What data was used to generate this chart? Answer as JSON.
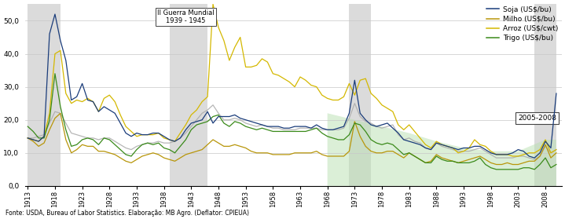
{
  "footnote": "Fonte: USDA, Bureau of Labor Statistics. Elaboração: MB Agro. (Deflator: CPIEUA)",
  "annotation1": "II Guerra Mundial\n1939 - 1945",
  "annotation2": "2005-2008",
  "legend_entries": [
    "Soja (US$/bu)",
    "Milho (US$/bu)",
    "Arroz (US$/cwt)",
    "Trigo (US$/bu)"
  ],
  "line_colors": {
    "soja": "#1a3c7a",
    "milho": "#b8960a",
    "arroz": "#d4b800",
    "trigo": "#3a8a1a",
    "gray": "#aaaaaa"
  },
  "shaded_regions": [
    {
      "xmin": 1913,
      "xmax": 1919,
      "color": "#b0b0b0",
      "alpha": 0.45
    },
    {
      "xmin": 1939,
      "xmax": 1946,
      "color": "#b0b0b0",
      "alpha": 0.45
    },
    {
      "xmin": 1972,
      "xmax": 1976,
      "color": "#b0b0b0",
      "alpha": 0.45
    },
    {
      "xmin": 2006,
      "xmax": 2010,
      "color": "#b0b0b0",
      "alpha": 0.45
    }
  ],
  "green_shaded_x": [
    1970,
    1975,
    1980,
    1985,
    1990,
    1995,
    2000,
    2005,
    2010
  ],
  "green_shaded_y_top": [
    22,
    20,
    18,
    14,
    12,
    10,
    9,
    9,
    14
  ],
  "green_shaded_color": "#b8e0b0",
  "green_shaded_alpha": 0.5,
  "ylim": [
    0,
    55
  ],
  "yticks": [
    0,
    10,
    20,
    30,
    40,
    50
  ],
  "ytick_labels": [
    "0,0",
    "10,0",
    "20,0",
    "30,0",
    "40,0",
    "50,0"
  ],
  "xtick_years": [
    1913,
    1918,
    1923,
    1928,
    1933,
    1938,
    1943,
    1948,
    1953,
    1958,
    1963,
    1968,
    1973,
    1978,
    1983,
    1988,
    1993,
    1998,
    2003,
    2008
  ],
  "background_color": "#ffffff",
  "grid_color": "#c8c8c8",
  "soja": [
    [
      1913,
      14.5
    ],
    [
      1914,
      14.0
    ],
    [
      1915,
      13.5
    ],
    [
      1916,
      15.0
    ],
    [
      1917,
      46.0
    ],
    [
      1918,
      52.0
    ],
    [
      1919,
      44.0
    ],
    [
      1920,
      38.0
    ],
    [
      1921,
      26.0
    ],
    [
      1922,
      27.0
    ],
    [
      1923,
      31.0
    ],
    [
      1924,
      26.0
    ],
    [
      1925,
      25.5
    ],
    [
      1926,
      22.5
    ],
    [
      1927,
      24.0
    ],
    [
      1928,
      23.0
    ],
    [
      1929,
      22.0
    ],
    [
      1930,
      19.0
    ],
    [
      1931,
      16.0
    ],
    [
      1932,
      15.0
    ],
    [
      1933,
      16.0
    ],
    [
      1934,
      15.5
    ],
    [
      1935,
      15.5
    ],
    [
      1936,
      16.0
    ],
    [
      1937,
      16.0
    ],
    [
      1938,
      15.0
    ],
    [
      1939,
      14.0
    ],
    [
      1940,
      13.5
    ],
    [
      1941,
      14.5
    ],
    [
      1942,
      17.0
    ],
    [
      1943,
      19.0
    ],
    [
      1944,
      19.5
    ],
    [
      1945,
      20.0
    ],
    [
      1946,
      22.5
    ],
    [
      1947,
      19.0
    ],
    [
      1948,
      21.0
    ],
    [
      1949,
      21.0
    ],
    [
      1950,
      21.0
    ],
    [
      1951,
      21.5
    ],
    [
      1952,
      20.5
    ],
    [
      1953,
      20.0
    ],
    [
      1954,
      19.5
    ],
    [
      1955,
      19.0
    ],
    [
      1956,
      18.5
    ],
    [
      1957,
      18.0
    ],
    [
      1958,
      18.0
    ],
    [
      1959,
      18.0
    ],
    [
      1960,
      17.5
    ],
    [
      1961,
      17.5
    ],
    [
      1962,
      18.0
    ],
    [
      1963,
      18.0
    ],
    [
      1964,
      18.0
    ],
    [
      1965,
      17.5
    ],
    [
      1966,
      18.5
    ],
    [
      1967,
      17.5
    ],
    [
      1968,
      17.0
    ],
    [
      1969,
      17.0
    ],
    [
      1970,
      17.5
    ],
    [
      1971,
      18.0
    ],
    [
      1972,
      22.0
    ],
    [
      1973,
      32.0
    ],
    [
      1974,
      22.0
    ],
    [
      1975,
      20.0
    ],
    [
      1976,
      18.5
    ],
    [
      1977,
      18.0
    ],
    [
      1978,
      18.5
    ],
    [
      1979,
      19.0
    ],
    [
      1980,
      17.5
    ],
    [
      1981,
      16.0
    ],
    [
      1982,
      14.0
    ],
    [
      1983,
      13.5
    ],
    [
      1984,
      13.0
    ],
    [
      1985,
      12.5
    ],
    [
      1986,
      11.5
    ],
    [
      1987,
      11.0
    ],
    [
      1988,
      13.0
    ],
    [
      1989,
      12.5
    ],
    [
      1990,
      12.0
    ],
    [
      1991,
      11.5
    ],
    [
      1992,
      11.0
    ],
    [
      1993,
      11.5
    ],
    [
      1994,
      11.5
    ],
    [
      1995,
      12.0
    ],
    [
      1996,
      12.0
    ],
    [
      1997,
      11.0
    ],
    [
      1998,
      10.0
    ],
    [
      1999,
      9.5
    ],
    [
      2000,
      9.5
    ],
    [
      2001,
      9.5
    ],
    [
      2002,
      10.0
    ],
    [
      2003,
      11.0
    ],
    [
      2004,
      10.5
    ],
    [
      2005,
      9.0
    ],
    [
      2006,
      8.5
    ],
    [
      2007,
      10.0
    ],
    [
      2008,
      13.5
    ],
    [
      2009,
      11.5
    ],
    [
      2010,
      28.0
    ]
  ],
  "milho": [
    [
      1913,
      14.5
    ],
    [
      1914,
      13.5
    ],
    [
      1915,
      12.0
    ],
    [
      1916,
      13.0
    ],
    [
      1917,
      17.0
    ],
    [
      1918,
      20.5
    ],
    [
      1919,
      22.0
    ],
    [
      1920,
      14.0
    ],
    [
      1921,
      10.0
    ],
    [
      1922,
      11.0
    ],
    [
      1923,
      12.5
    ],
    [
      1924,
      12.0
    ],
    [
      1925,
      12.0
    ],
    [
      1926,
      10.5
    ],
    [
      1927,
      10.5
    ],
    [
      1928,
      10.0
    ],
    [
      1929,
      9.5
    ],
    [
      1930,
      8.5
    ],
    [
      1931,
      7.5
    ],
    [
      1932,
      7.0
    ],
    [
      1933,
      8.0
    ],
    [
      1934,
      9.0
    ],
    [
      1935,
      9.5
    ],
    [
      1936,
      10.0
    ],
    [
      1937,
      9.5
    ],
    [
      1938,
      8.5
    ],
    [
      1939,
      8.0
    ],
    [
      1940,
      7.5
    ],
    [
      1941,
      8.5
    ],
    [
      1942,
      9.5
    ],
    [
      1943,
      10.0
    ],
    [
      1944,
      10.5
    ],
    [
      1945,
      11.0
    ],
    [
      1946,
      12.5
    ],
    [
      1947,
      14.0
    ],
    [
      1948,
      13.0
    ],
    [
      1949,
      12.0
    ],
    [
      1950,
      12.0
    ],
    [
      1951,
      12.5
    ],
    [
      1952,
      12.0
    ],
    [
      1953,
      11.5
    ],
    [
      1954,
      10.5
    ],
    [
      1955,
      10.0
    ],
    [
      1956,
      10.0
    ],
    [
      1957,
      10.0
    ],
    [
      1958,
      9.5
    ],
    [
      1959,
      9.5
    ],
    [
      1960,
      9.5
    ],
    [
      1961,
      9.5
    ],
    [
      1962,
      10.0
    ],
    [
      1963,
      10.0
    ],
    [
      1964,
      10.0
    ],
    [
      1965,
      10.0
    ],
    [
      1966,
      10.5
    ],
    [
      1967,
      9.5
    ],
    [
      1968,
      9.0
    ],
    [
      1969,
      9.0
    ],
    [
      1970,
      9.0
    ],
    [
      1971,
      9.0
    ],
    [
      1972,
      10.5
    ],
    [
      1973,
      19.5
    ],
    [
      1974,
      15.0
    ],
    [
      1975,
      12.0
    ],
    [
      1976,
      10.5
    ],
    [
      1977,
      10.0
    ],
    [
      1978,
      10.0
    ],
    [
      1979,
      10.5
    ],
    [
      1980,
      10.5
    ],
    [
      1981,
      9.5
    ],
    [
      1982,
      8.5
    ],
    [
      1983,
      10.0
    ],
    [
      1984,
      9.0
    ],
    [
      1985,
      8.0
    ],
    [
      1986,
      7.0
    ],
    [
      1987,
      7.5
    ],
    [
      1988,
      9.5
    ],
    [
      1989,
      8.5
    ],
    [
      1990,
      8.0
    ],
    [
      1991,
      7.5
    ],
    [
      1992,
      7.0
    ],
    [
      1993,
      7.5
    ],
    [
      1994,
      8.0
    ],
    [
      1995,
      8.5
    ],
    [
      1996,
      9.0
    ],
    [
      1997,
      8.0
    ],
    [
      1998,
      7.0
    ],
    [
      1999,
      6.5
    ],
    [
      2000,
      6.5
    ],
    [
      2001,
      7.0
    ],
    [
      2002,
      6.5
    ],
    [
      2003,
      6.5
    ],
    [
      2004,
      7.0
    ],
    [
      2005,
      7.5
    ],
    [
      2006,
      7.5
    ],
    [
      2007,
      9.0
    ],
    [
      2008,
      12.5
    ],
    [
      2009,
      8.5
    ],
    [
      2010,
      10.0
    ]
  ],
  "arroz": [
    [
      1913,
      14.5
    ],
    [
      1914,
      14.0
    ],
    [
      1915,
      13.5
    ],
    [
      1916,
      15.0
    ],
    [
      1917,
      22.0
    ],
    [
      1918,
      40.0
    ],
    [
      1919,
      41.0
    ],
    [
      1920,
      28.0
    ],
    [
      1921,
      25.0
    ],
    [
      1922,
      26.0
    ],
    [
      1923,
      25.5
    ],
    [
      1924,
      26.5
    ],
    [
      1925,
      25.5
    ],
    [
      1926,
      22.5
    ],
    [
      1927,
      26.5
    ],
    [
      1928,
      27.5
    ],
    [
      1929,
      25.5
    ],
    [
      1930,
      21.5
    ],
    [
      1931,
      18.0
    ],
    [
      1932,
      16.5
    ],
    [
      1933,
      15.0
    ],
    [
      1934,
      15.5
    ],
    [
      1935,
      15.5
    ],
    [
      1936,
      15.5
    ],
    [
      1937,
      16.0
    ],
    [
      1938,
      14.5
    ],
    [
      1939,
      14.0
    ],
    [
      1940,
      13.5
    ],
    [
      1941,
      16.0
    ],
    [
      1942,
      18.5
    ],
    [
      1943,
      21.5
    ],
    [
      1944,
      23.0
    ],
    [
      1945,
      25.5
    ],
    [
      1946,
      27.0
    ],
    [
      1947,
      55.0
    ],
    [
      1948,
      48.0
    ],
    [
      1949,
      44.0
    ],
    [
      1950,
      38.0
    ],
    [
      1951,
      42.0
    ],
    [
      1952,
      45.0
    ],
    [
      1953,
      36.0
    ],
    [
      1954,
      36.0
    ],
    [
      1955,
      36.5
    ],
    [
      1956,
      38.5
    ],
    [
      1957,
      37.5
    ],
    [
      1958,
      34.0
    ],
    [
      1959,
      33.5
    ],
    [
      1960,
      32.5
    ],
    [
      1961,
      31.5
    ],
    [
      1962,
      30.0
    ],
    [
      1963,
      33.0
    ],
    [
      1964,
      32.0
    ],
    [
      1965,
      30.5
    ],
    [
      1966,
      30.0
    ],
    [
      1967,
      27.5
    ],
    [
      1968,
      26.5
    ],
    [
      1969,
      26.0
    ],
    [
      1970,
      26.0
    ],
    [
      1971,
      27.0
    ],
    [
      1972,
      31.0
    ],
    [
      1973,
      27.5
    ],
    [
      1974,
      32.0
    ],
    [
      1975,
      32.5
    ],
    [
      1976,
      28.0
    ],
    [
      1977,
      26.5
    ],
    [
      1978,
      24.5
    ],
    [
      1979,
      23.5
    ],
    [
      1980,
      22.5
    ],
    [
      1981,
      18.5
    ],
    [
      1982,
      17.0
    ],
    [
      1983,
      18.5
    ],
    [
      1984,
      16.5
    ],
    [
      1985,
      14.5
    ],
    [
      1986,
      12.5
    ],
    [
      1987,
      11.5
    ],
    [
      1988,
      13.5
    ],
    [
      1989,
      12.5
    ],
    [
      1990,
      12.0
    ],
    [
      1991,
      11.5
    ],
    [
      1992,
      10.0
    ],
    [
      1993,
      10.5
    ],
    [
      1994,
      11.5
    ],
    [
      1995,
      14.0
    ],
    [
      1996,
      12.5
    ],
    [
      1997,
      12.0
    ],
    [
      1998,
      10.5
    ],
    [
      1999,
      9.5
    ],
    [
      2000,
      9.5
    ],
    [
      2001,
      9.5
    ],
    [
      2002,
      9.0
    ],
    [
      2003,
      9.0
    ],
    [
      2004,
      9.5
    ],
    [
      2005,
      10.0
    ],
    [
      2006,
      10.0
    ],
    [
      2007,
      11.0
    ],
    [
      2008,
      14.0
    ],
    [
      2009,
      10.0
    ],
    [
      2010,
      11.0
    ]
  ],
  "trigo": [
    [
      1913,
      18.0
    ],
    [
      1914,
      16.5
    ],
    [
      1915,
      14.5
    ],
    [
      1916,
      14.5
    ],
    [
      1917,
      20.0
    ],
    [
      1918,
      34.0
    ],
    [
      1919,
      24.0
    ],
    [
      1920,
      17.0
    ],
    [
      1921,
      12.0
    ],
    [
      1922,
      12.5
    ],
    [
      1923,
      14.0
    ],
    [
      1924,
      14.5
    ],
    [
      1925,
      14.0
    ],
    [
      1926,
      12.5
    ],
    [
      1927,
      14.5
    ],
    [
      1928,
      14.0
    ],
    [
      1929,
      12.5
    ],
    [
      1930,
      11.0
    ],
    [
      1931,
      9.5
    ],
    [
      1932,
      9.0
    ],
    [
      1933,
      11.0
    ],
    [
      1934,
      12.5
    ],
    [
      1935,
      13.0
    ],
    [
      1936,
      12.5
    ],
    [
      1937,
      13.0
    ],
    [
      1938,
      11.5
    ],
    [
      1939,
      11.0
    ],
    [
      1940,
      10.0
    ],
    [
      1941,
      12.0
    ],
    [
      1942,
      14.0
    ],
    [
      1943,
      17.0
    ],
    [
      1944,
      18.5
    ],
    [
      1945,
      19.0
    ],
    [
      1946,
      19.5
    ],
    [
      1947,
      21.0
    ],
    [
      1948,
      21.5
    ],
    [
      1949,
      19.0
    ],
    [
      1950,
      18.0
    ],
    [
      1951,
      19.5
    ],
    [
      1952,
      19.0
    ],
    [
      1953,
      18.0
    ],
    [
      1954,
      17.5
    ],
    [
      1955,
      17.0
    ],
    [
      1956,
      17.5
    ],
    [
      1957,
      17.0
    ],
    [
      1958,
      16.5
    ],
    [
      1959,
      16.5
    ],
    [
      1960,
      16.5
    ],
    [
      1961,
      16.5
    ],
    [
      1962,
      16.5
    ],
    [
      1963,
      16.5
    ],
    [
      1964,
      16.5
    ],
    [
      1965,
      17.0
    ],
    [
      1966,
      17.5
    ],
    [
      1967,
      16.0
    ],
    [
      1968,
      15.0
    ],
    [
      1969,
      14.5
    ],
    [
      1970,
      14.0
    ],
    [
      1971,
      14.0
    ],
    [
      1972,
      15.5
    ],
    [
      1973,
      19.0
    ],
    [
      1974,
      18.5
    ],
    [
      1975,
      16.5
    ],
    [
      1976,
      14.0
    ],
    [
      1977,
      13.0
    ],
    [
      1978,
      12.5
    ],
    [
      1979,
      13.0
    ],
    [
      1980,
      12.5
    ],
    [
      1981,
      11.0
    ],
    [
      1982,
      9.5
    ],
    [
      1983,
      10.0
    ],
    [
      1984,
      9.0
    ],
    [
      1985,
      8.0
    ],
    [
      1986,
      7.0
    ],
    [
      1987,
      7.0
    ],
    [
      1988,
      9.0
    ],
    [
      1989,
      8.0
    ],
    [
      1990,
      7.5
    ],
    [
      1991,
      7.5
    ],
    [
      1992,
      7.0
    ],
    [
      1993,
      7.0
    ],
    [
      1994,
      7.0
    ],
    [
      1995,
      7.5
    ],
    [
      1996,
      8.5
    ],
    [
      1997,
      6.5
    ],
    [
      1998,
      5.5
    ],
    [
      1999,
      5.0
    ],
    [
      2000,
      5.0
    ],
    [
      2001,
      5.0
    ],
    [
      2002,
      5.0
    ],
    [
      2003,
      5.0
    ],
    [
      2004,
      5.5
    ],
    [
      2005,
      5.5
    ],
    [
      2006,
      5.0
    ],
    [
      2007,
      6.5
    ],
    [
      2008,
      8.5
    ],
    [
      2009,
      5.5
    ],
    [
      2010,
      6.5
    ]
  ],
  "gray_line": [
    [
      1913,
      14.5
    ],
    [
      1914,
      14.5
    ],
    [
      1915,
      15.0
    ],
    [
      1916,
      15.5
    ],
    [
      1917,
      19.0
    ],
    [
      1918,
      22.5
    ],
    [
      1919,
      22.0
    ],
    [
      1920,
      19.0
    ],
    [
      1921,
      16.0
    ],
    [
      1922,
      15.5
    ],
    [
      1923,
      15.0
    ],
    [
      1924,
      14.5
    ],
    [
      1925,
      14.5
    ],
    [
      1926,
      14.0
    ],
    [
      1927,
      14.5
    ],
    [
      1928,
      14.5
    ],
    [
      1929,
      13.5
    ],
    [
      1930,
      12.5
    ],
    [
      1931,
      11.5
    ],
    [
      1932,
      11.0
    ],
    [
      1933,
      12.0
    ],
    [
      1934,
      12.5
    ],
    [
      1935,
      13.0
    ],
    [
      1936,
      13.0
    ],
    [
      1937,
      13.5
    ],
    [
      1938,
      13.0
    ],
    [
      1939,
      13.0
    ],
    [
      1940,
      13.5
    ],
    [
      1941,
      14.5
    ],
    [
      1942,
      16.0
    ],
    [
      1943,
      18.0
    ],
    [
      1944,
      20.0
    ],
    [
      1945,
      22.0
    ],
    [
      1946,
      23.0
    ],
    [
      1947,
      24.5
    ],
    [
      1948,
      22.0
    ],
    [
      1949,
      20.0
    ],
    [
      1950,
      20.0
    ],
    [
      1951,
      20.5
    ],
    [
      1952,
      20.0
    ],
    [
      1953,
      19.0
    ],
    [
      1954,
      18.5
    ],
    [
      1955,
      18.0
    ],
    [
      1956,
      18.5
    ],
    [
      1957,
      18.0
    ],
    [
      1958,
      17.5
    ],
    [
      1959,
      17.5
    ],
    [
      1960,
      17.0
    ],
    [
      1961,
      17.0
    ],
    [
      1962,
      17.0
    ],
    [
      1963,
      17.5
    ],
    [
      1964,
      17.5
    ],
    [
      1965,
      17.5
    ],
    [
      1966,
      17.5
    ],
    [
      1967,
      17.0
    ],
    [
      1968,
      17.0
    ],
    [
      1969,
      17.0
    ],
    [
      1970,
      17.0
    ],
    [
      1971,
      17.5
    ],
    [
      1972,
      20.5
    ],
    [
      1973,
      25.0
    ],
    [
      1974,
      21.0
    ],
    [
      1975,
      19.5
    ],
    [
      1976,
      19.0
    ],
    [
      1977,
      18.0
    ],
    [
      1978,
      17.5
    ],
    [
      1979,
      18.0
    ],
    [
      1980,
      18.5
    ],
    [
      1981,
      15.5
    ],
    [
      1982,
      14.0
    ],
    [
      1983,
      14.5
    ],
    [
      1984,
      13.5
    ],
    [
      1985,
      13.0
    ],
    [
      1986,
      11.5
    ],
    [
      1987,
      11.0
    ],
    [
      1988,
      13.0
    ],
    [
      1989,
      12.0
    ],
    [
      1990,
      11.5
    ],
    [
      1991,
      11.0
    ],
    [
      1992,
      10.5
    ],
    [
      1993,
      10.5
    ],
    [
      1994,
      10.5
    ],
    [
      1995,
      11.0
    ],
    [
      1996,
      11.5
    ],
    [
      1997,
      10.5
    ],
    [
      1998,
      9.5
    ],
    [
      1999,
      8.5
    ],
    [
      2000,
      8.5
    ],
    [
      2001,
      8.5
    ],
    [
      2002,
      8.5
    ],
    [
      2003,
      9.0
    ],
    [
      2004,
      9.0
    ],
    [
      2005,
      8.5
    ],
    [
      2006,
      8.0
    ],
    [
      2007,
      9.0
    ],
    [
      2008,
      12.0
    ],
    [
      2009,
      10.0
    ],
    [
      2010,
      11.0
    ]
  ]
}
